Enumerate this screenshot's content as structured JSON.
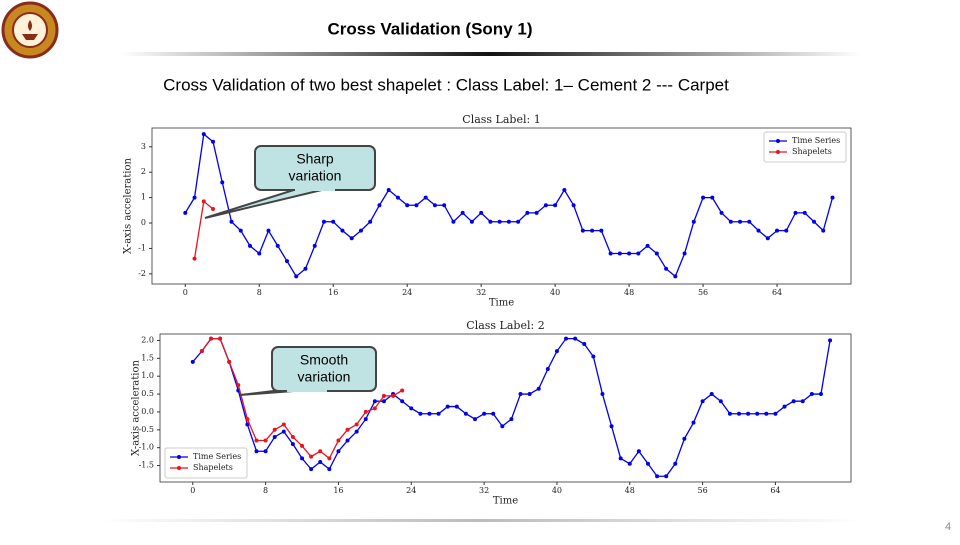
{
  "header": {
    "title": "Cross Validation (Sony 1)",
    "subtitle": "Cross Validation of two best shapelet : Class Label:  1– Cement   2 --- Carpet"
  },
  "callouts": [
    "Sharp variation",
    "Smooth variation"
  ],
  "page_number": "4",
  "chart_data": [
    {
      "type": "line",
      "title": "Class Label: 1",
      "x_label": "Time",
      "y_label": "X-axis acceleration",
      "x": [
        0,
        1,
        2,
        3,
        4,
        5,
        6,
        7,
        8,
        9,
        10,
        11,
        12,
        13,
        14,
        15,
        16,
        17,
        18,
        19,
        20,
        21,
        22,
        23,
        24,
        25,
        26,
        27,
        28,
        29,
        30,
        31,
        32,
        33,
        34,
        35,
        36,
        37,
        38,
        39,
        40,
        41,
        42,
        43,
        44,
        45,
        46,
        47,
        48,
        49,
        50,
        51,
        52,
        53,
        54,
        55,
        56,
        57,
        58,
        59,
        60,
        61,
        62,
        63,
        64,
        65,
        66,
        67,
        68,
        69,
        70
      ],
      "series": [
        {
          "name": "Time Series",
          "color": "#0000ee",
          "values": [
            0.4,
            1.0,
            3.5,
            3.2,
            1.6,
            0.05,
            -0.3,
            -0.9,
            -1.2,
            -0.3,
            -0.9,
            -1.5,
            -2.1,
            -1.8,
            -0.9,
            0.05,
            0.05,
            -0.3,
            -0.6,
            -0.3,
            0.05,
            0.7,
            1.3,
            1.0,
            0.7,
            0.7,
            1.0,
            0.7,
            0.7,
            0.05,
            0.4,
            0.05,
            0.4,
            0.05,
            0.05,
            0.05,
            0.05,
            0.4,
            0.4,
            0.7,
            0.7,
            1.3,
            0.7,
            -0.3,
            -0.3,
            -0.3,
            -1.2,
            -1.2,
            -1.2,
            -1.2,
            -0.9,
            -1.2,
            -1.8,
            -2.1,
            -1.2,
            0.05,
            1.0,
            1.0,
            0.4,
            0.05,
            0.05,
            0.05,
            -0.3,
            -0.6,
            -0.3,
            -0.3,
            0.4,
            0.4,
            0.05,
            -0.3,
            1.0
          ]
        },
        {
          "name": "Shapelets",
          "color": "#e8141e",
          "values": [
            null,
            -1.4,
            0.85,
            0.55,
            null,
            null,
            null,
            null,
            null,
            null,
            null,
            null,
            null,
            null,
            null,
            null,
            null,
            null,
            null,
            null,
            null,
            null,
            null,
            null,
            null,
            null,
            null,
            null,
            null,
            null,
            null,
            null,
            null,
            null,
            null,
            null,
            null,
            null,
            null,
            null,
            null,
            null,
            null,
            null,
            null,
            null,
            null,
            null,
            null,
            null,
            null,
            null,
            null,
            null,
            null,
            null,
            null,
            null,
            null,
            null,
            null,
            null,
            null,
            null,
            null,
            null,
            null,
            null,
            null,
            null,
            null
          ]
        }
      ],
      "xlim": [
        -3.6,
        72
      ],
      "ylim": [
        -2.4,
        3.74
      ],
      "xticks": [
        0,
        8,
        16,
        24,
        32,
        40,
        48,
        56,
        64
      ],
      "yticks": [
        -2,
        -1,
        0,
        1,
        2,
        3
      ],
      "legend": "upper right"
    },
    {
      "type": "line",
      "title": "Class Label: 2",
      "x_label": "Time",
      "y_label": "X-axis acceleration",
      "x": [
        0,
        1,
        2,
        3,
        4,
        5,
        6,
        7,
        8,
        9,
        10,
        11,
        12,
        13,
        14,
        15,
        16,
        17,
        18,
        19,
        20,
        21,
        22,
        23,
        24,
        25,
        26,
        27,
        28,
        29,
        30,
        31,
        32,
        33,
        34,
        35,
        36,
        37,
        38,
        39,
        40,
        41,
        42,
        43,
        44,
        45,
        46,
        47,
        48,
        49,
        50,
        51,
        52,
        53,
        54,
        55,
        56,
        57,
        58,
        59,
        60,
        61,
        62,
        63,
        64,
        65,
        66,
        67,
        68,
        69,
        70
      ],
      "series": [
        {
          "name": "Time Series",
          "color": "#0000ee",
          "values": [
            1.4,
            1.7,
            2.05,
            2.05,
            1.4,
            0.6,
            -0.35,
            -1.1,
            -1.1,
            -0.7,
            -0.55,
            -0.9,
            -1.3,
            -1.6,
            -1.4,
            -1.6,
            -1.1,
            -0.8,
            -0.55,
            -0.2,
            0.3,
            0.3,
            0.5,
            0.3,
            0.1,
            -0.05,
            -0.05,
            -0.05,
            0.15,
            0.15,
            -0.05,
            -0.2,
            -0.05,
            -0.05,
            -0.4,
            -0.2,
            0.5,
            0.5,
            0.65,
            1.2,
            1.7,
            2.05,
            2.05,
            1.9,
            1.55,
            0.5,
            -0.4,
            -1.3,
            -1.45,
            -1.1,
            -1.45,
            -1.8,
            -1.8,
            -1.45,
            -0.75,
            -0.3,
            0.3,
            0.5,
            0.3,
            -0.05,
            -0.05,
            -0.05,
            -0.05,
            -0.05,
            -0.05,
            0.15,
            0.3,
            0.3,
            0.5,
            0.5,
            2.0
          ]
        },
        {
          "name": "Shapelets",
          "color": "#e8141e",
          "values": [
            null,
            1.7,
            2.05,
            2.05,
            1.4,
            0.75,
            -0.2,
            -0.8,
            -0.8,
            -0.5,
            -0.35,
            -0.7,
            -0.95,
            -1.25,
            -1.1,
            -1.3,
            -0.8,
            -0.5,
            -0.35,
            0.0,
            0.1,
            0.45,
            0.45,
            0.6,
            null,
            null,
            null,
            null,
            null,
            null,
            null,
            null,
            null,
            null,
            null,
            null,
            null,
            null,
            null,
            null,
            null,
            null,
            null,
            null,
            null,
            null,
            null,
            null,
            null,
            null,
            null,
            null,
            null,
            null,
            null,
            null,
            null,
            null,
            null,
            null,
            null,
            null,
            null,
            null,
            null,
            null,
            null,
            null,
            null,
            null,
            null
          ]
        }
      ],
      "xlim": [
        -3.6,
        72.3
      ],
      "ylim": [
        -1.96,
        2.18
      ],
      "xticks": [
        0,
        8,
        16,
        24,
        32,
        40,
        48,
        56,
        64
      ],
      "yticks": [
        -1.5,
        {
          "value": -1,
          "label": "-1.0"
        },
        -0.5,
        {
          "value": 0,
          "label": "0.0"
        },
        0.5,
        {
          "value": 1,
          "label": "1.0"
        },
        1.5,
        {
          "value": 2,
          "label": "2.0"
        }
      ],
      "legend": "lower left"
    }
  ]
}
